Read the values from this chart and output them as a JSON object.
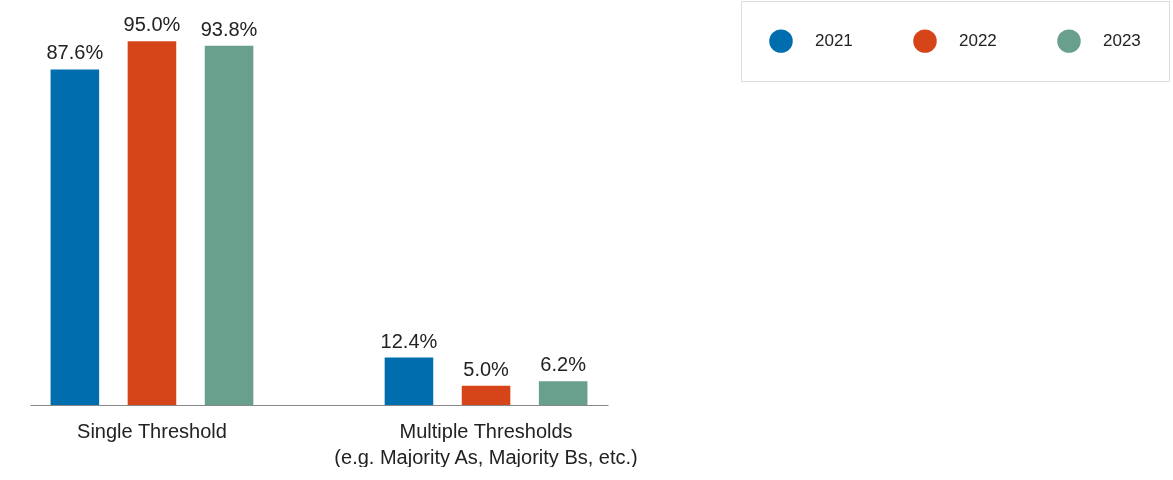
{
  "chart_data": {
    "type": "bar",
    "categories": [
      "Single Threshold",
      "Multiple Thresholds\n(e.g. Majority As, Majority Bs, etc.)"
    ],
    "series": [
      {
        "name": "2021",
        "color": "#006eae",
        "values": [
          87.6,
          12.4
        ],
        "value_labels": [
          "87.6%",
          "12.4%"
        ]
      },
      {
        "name": "2022",
        "color": "#d64519",
        "values": [
          95.0,
          5.0
        ],
        "value_labels": [
          "95.0%",
          "5.0%"
        ]
      },
      {
        "name": "2023",
        "color": "#69a08d",
        "values": [
          93.8,
          6.2
        ],
        "value_labels": [
          "93.8%",
          "6.2%"
        ]
      }
    ],
    "legend": "top right"
  }
}
